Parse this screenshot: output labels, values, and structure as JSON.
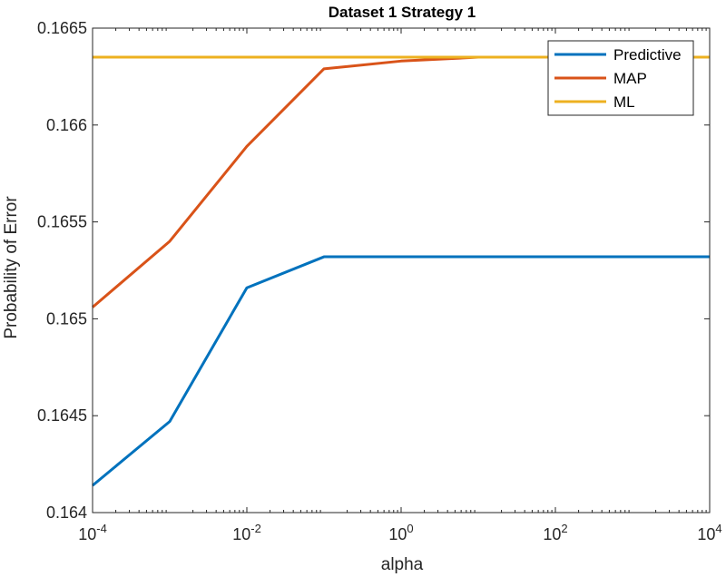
{
  "chart_data": {
    "type": "line",
    "title": "Dataset 1 Strategy 1",
    "xlabel": "alpha",
    "ylabel": "Probability of Error",
    "x_scale": "log",
    "xlim": [
      0.0001,
      10000
    ],
    "ylim": [
      0.164,
      0.1665
    ],
    "x_ticks": [
      {
        "value": 0.0001,
        "base": "10",
        "exp": "-4"
      },
      {
        "value": 0.01,
        "base": "10",
        "exp": "-2"
      },
      {
        "value": 1,
        "base": "10",
        "exp": "0"
      },
      {
        "value": 100,
        "base": "10",
        "exp": "2"
      },
      {
        "value": 10000,
        "base": "10",
        "exp": "4"
      }
    ],
    "y_ticks": [
      {
        "value": 0.164,
        "label": "0.164"
      },
      {
        "value": 0.1645,
        "label": "0.1645"
      },
      {
        "value": 0.165,
        "label": "0.165"
      },
      {
        "value": 0.1655,
        "label": "0.1655"
      },
      {
        "value": 0.166,
        "label": "0.166"
      },
      {
        "value": 0.1665,
        "label": "0.1665"
      }
    ],
    "grid": false,
    "legend_position": "top-right",
    "x": [
      0.0001,
      0.001,
      0.01,
      0.1,
      1,
      10,
      100,
      1000,
      10000
    ],
    "series": [
      {
        "name": "Predictive",
        "color": "#0072BD",
        "values": [
          0.16414,
          0.16447,
          0.16516,
          0.16532,
          0.16532,
          0.16532,
          0.16532,
          0.16532,
          0.16532
        ]
      },
      {
        "name": "MAP",
        "color": "#D95319",
        "values": [
          0.16506,
          0.1654,
          0.16589,
          0.16629,
          0.16633,
          0.16635,
          0.16635,
          0.16635,
          0.16635
        ]
      },
      {
        "name": "ML",
        "color": "#EDB120",
        "values": [
          0.16635,
          0.16635,
          0.16635,
          0.16635,
          0.16635,
          0.16635,
          0.16635,
          0.16635,
          0.16635
        ]
      }
    ]
  }
}
